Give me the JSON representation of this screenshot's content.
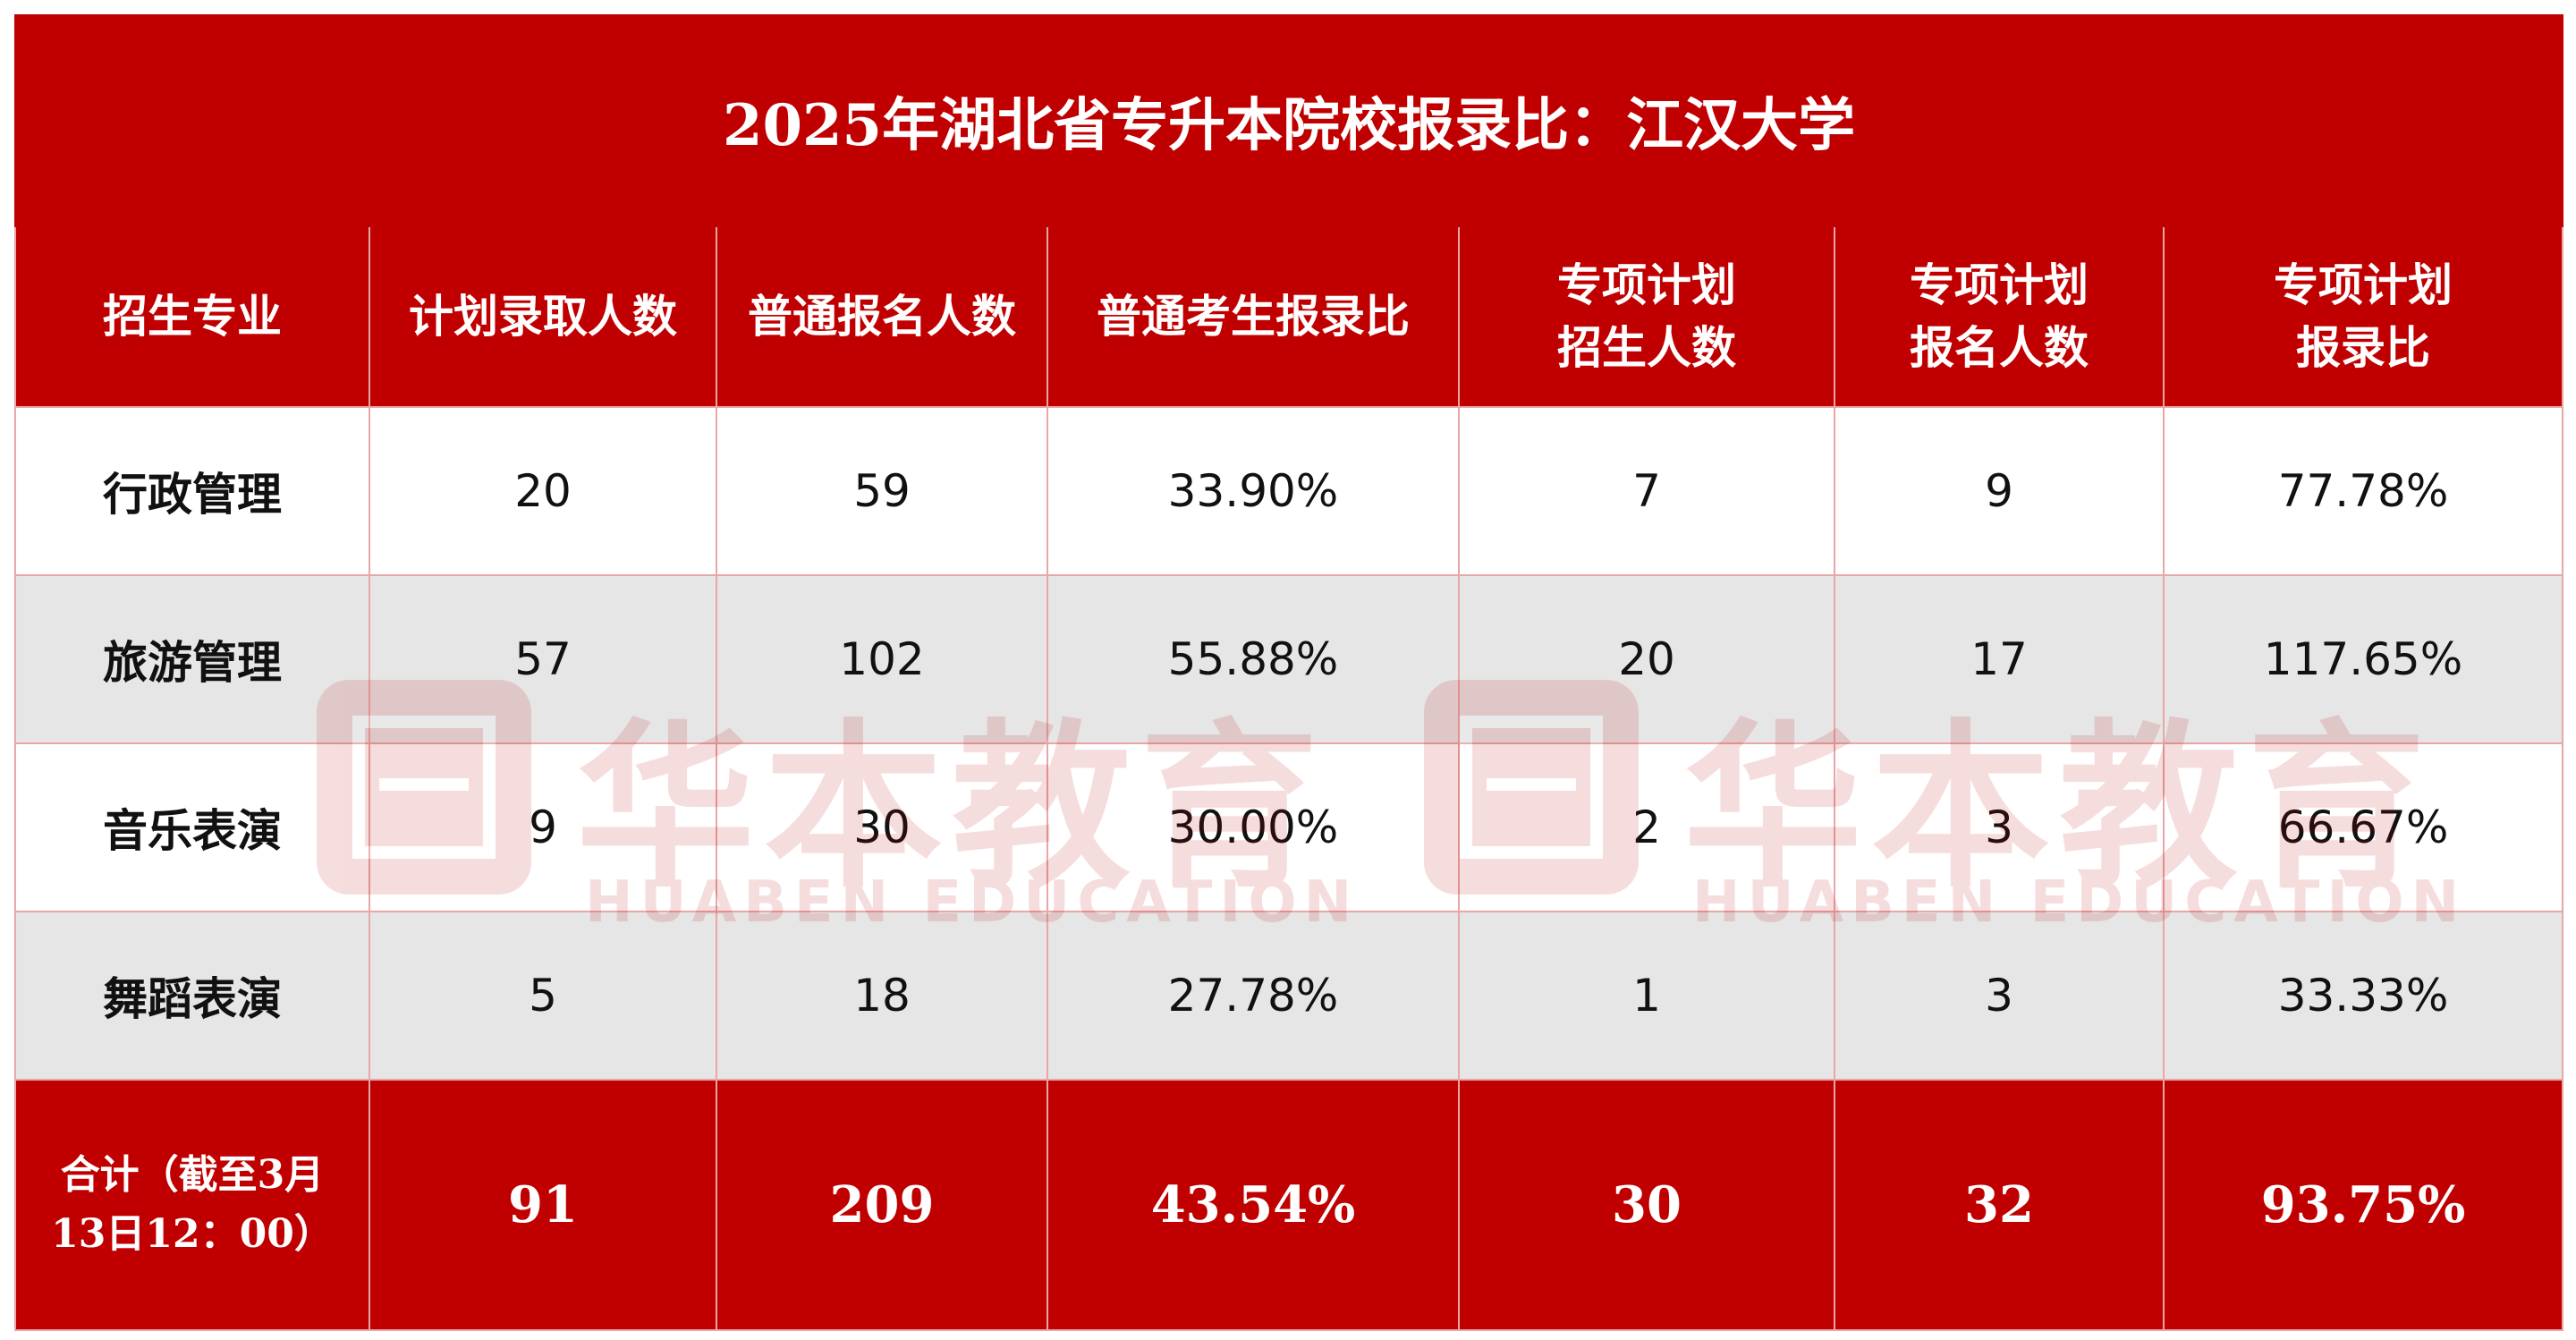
{
  "title": "2025年湖北省专升本院校报录比：江汉大学",
  "headers": {
    "major": "招生专业",
    "plan": "计划录取人数",
    "normal_apply": "普通报名人数",
    "normal_ratio": "普通考生报录比",
    "special_plan_line1": "专项计划",
    "special_plan_line2": "招生人数",
    "special_apply_line1": "专项计划",
    "special_apply_line2": "报名人数",
    "special_ratio_line1": "专项计划",
    "special_ratio_line2": "报录比"
  },
  "rows": [
    {
      "major": "行政管理",
      "plan": "20",
      "normal_apply": "59",
      "normal_ratio": "33.90%",
      "special_plan": "7",
      "special_apply": "9",
      "special_ratio": "77.78%"
    },
    {
      "major": "旅游管理",
      "plan": "57",
      "normal_apply": "102",
      "normal_ratio": "55.88%",
      "special_plan": "20",
      "special_apply": "17",
      "special_ratio": "117.65%"
    },
    {
      "major": "音乐表演",
      "plan": "9",
      "normal_apply": "30",
      "normal_ratio": "30.00%",
      "special_plan": "2",
      "special_apply": "3",
      "special_ratio": "66.67%"
    },
    {
      "major": "舞蹈表演",
      "plan": "5",
      "normal_apply": "18",
      "normal_ratio": "27.78%",
      "special_plan": "1",
      "special_apply": "3",
      "special_ratio": "33.33%"
    }
  ],
  "total": {
    "label_line1": "合计（截至3月",
    "label_line2": "13日12：00）",
    "plan": "91",
    "normal_apply": "209",
    "normal_ratio": "43.54%",
    "special_plan": "30",
    "special_apply": "32",
    "special_ratio": "93.75%"
  },
  "watermark": {
    "cn": "华本教育",
    "en": "HUABEN EDUCATION"
  },
  "colors": {
    "header_red": "#c00000",
    "row_gray": "#e6e6e6"
  }
}
